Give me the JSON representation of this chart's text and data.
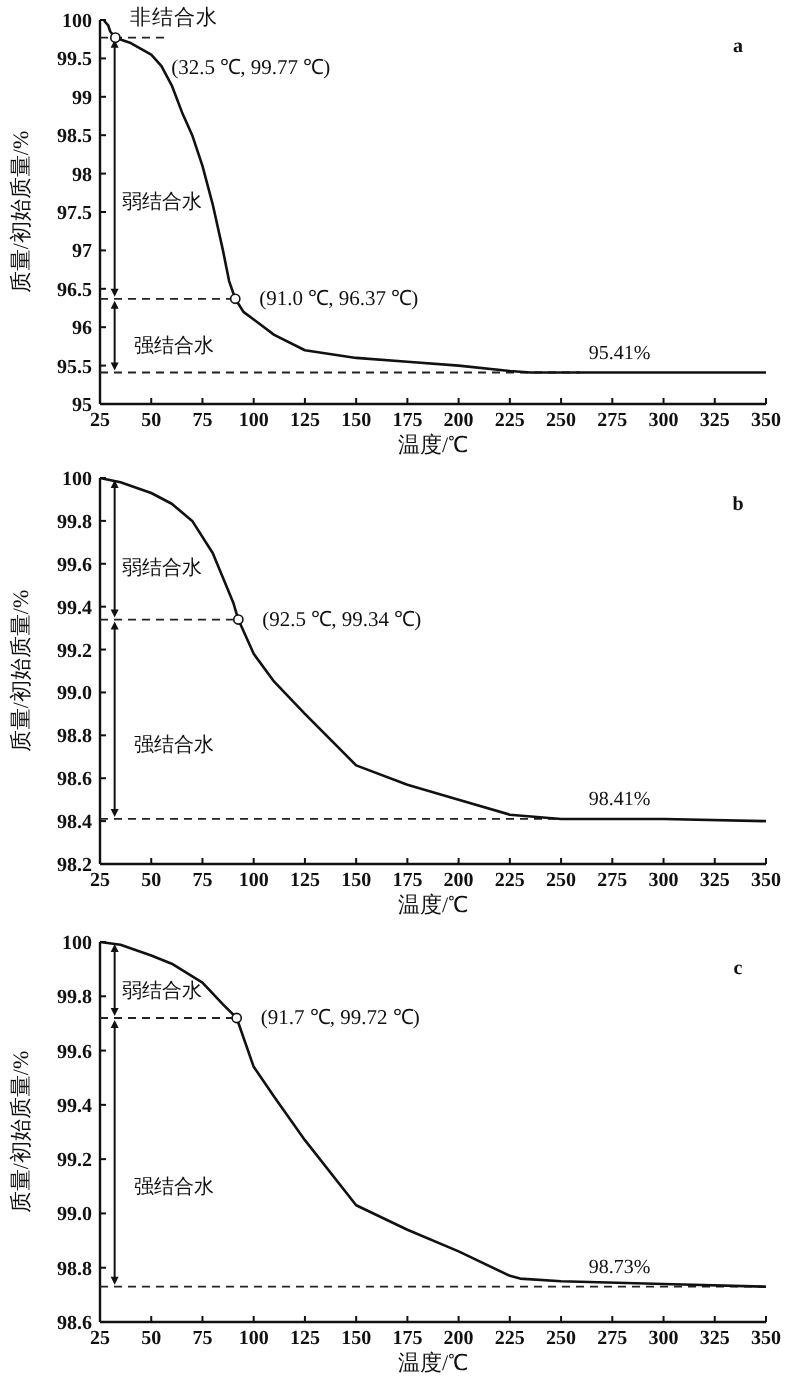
{
  "chart_data": [
    {
      "type": "line",
      "title": "a",
      "xlabel": "温度/℃",
      "ylabel": "质量/初始质量/%",
      "xlim": [
        25,
        350
      ],
      "ylim": [
        95,
        100
      ],
      "xticks": [
        25,
        50,
        75,
        100,
        125,
        150,
        175,
        200,
        225,
        250,
        275,
        300,
        325,
        350
      ],
      "yticks": [
        95,
        95.5,
        96,
        96.5,
        97,
        97.5,
        98,
        98.5,
        99,
        99.5,
        100
      ],
      "grid": false,
      "marker": "none",
      "line_style": "solid",
      "series": [
        {
          "color": "#111111",
          "x": [
            27,
            29,
            30,
            32.5,
            40,
            50,
            55,
            60,
            65,
            70,
            75,
            80,
            85,
            88,
            91,
            95,
            100,
            110,
            125,
            150,
            175,
            200,
            225,
            235,
            350
          ],
          "values": [
            99.99,
            99.93,
            99.85,
            99.77,
            99.7,
            99.55,
            99.4,
            99.15,
            98.8,
            98.5,
            98.1,
            97.6,
            97.0,
            96.6,
            96.37,
            96.2,
            96.1,
            95.9,
            95.7,
            95.6,
            95.55,
            95.5,
            95.43,
            95.41,
            95.41
          ]
        }
      ],
      "ref_lines": [
        {
          "axis": "y",
          "value": 99.77,
          "label": null,
          "line_style": "dashed"
        },
        {
          "axis": "y",
          "value": 96.37,
          "label": null,
          "line_style": "dashed"
        },
        {
          "axis": "y",
          "value": 95.41,
          "label": "95.41%",
          "line_style": "dashed"
        }
      ],
      "annotations": [
        {
          "text": "(32.5 ℃, 99.77 ℃)",
          "x": 32.5,
          "y": 99.77
        },
        {
          "text": "(91.0 ℃, 96.37 ℃)",
          "x": 91.0,
          "y": 96.37
        },
        "非结合水",
        "弱结合水",
        "强结合水"
      ]
    },
    {
      "type": "line",
      "title": "b",
      "xlabel": "温度/℃",
      "ylabel": "质量/初始质量/%",
      "xlim": [
        25,
        350
      ],
      "ylim": [
        98.2,
        100
      ],
      "xticks": [
        25,
        50,
        75,
        100,
        125,
        150,
        175,
        200,
        225,
        250,
        275,
        300,
        325,
        350
      ],
      "yticks": [
        98.2,
        98.4,
        98.6,
        98.8,
        {
          "value": 99,
          "label": "99.0"
        },
        99.2,
        99.4,
        99.6,
        99.8,
        100
      ],
      "grid": false,
      "marker": "none",
      "line_style": "solid",
      "series": [
        {
          "color": "#111111",
          "x": [
            25,
            35,
            50,
            60,
            70,
            80,
            90,
            92.5,
            100,
            110,
            125,
            150,
            175,
            200,
            225,
            250,
            300,
            350
          ],
          "values": [
            100,
            99.98,
            99.93,
            99.88,
            99.8,
            99.65,
            99.42,
            99.34,
            99.18,
            99.05,
            98.9,
            98.66,
            98.57,
            98.5,
            98.43,
            98.41,
            98.41,
            98.4
          ]
        }
      ],
      "ref_lines": [
        {
          "axis": "y",
          "value": 99.34,
          "label": null,
          "line_style": "dashed"
        },
        {
          "axis": "y",
          "value": 98.41,
          "label": "98.41%",
          "line_style": "dashed"
        }
      ],
      "annotations": [
        {
          "text": "(92.5 ℃, 99.34 ℃)",
          "x": 92.5,
          "y": 99.34
        },
        "弱结合水",
        "强结合水"
      ]
    },
    {
      "type": "line",
      "title": "c",
      "xlabel": "温度/℃",
      "ylabel": "质量/初始质量/%",
      "xlim": [
        25,
        350
      ],
      "ylim": [
        98.6,
        100
      ],
      "xticks": [
        25,
        50,
        75,
        100,
        125,
        150,
        175,
        200,
        225,
        250,
        275,
        300,
        325,
        350
      ],
      "yticks": [
        98.6,
        98.8,
        {
          "value": 99,
          "label": "99.0"
        },
        99.2,
        99.4,
        99.6,
        99.8,
        100
      ],
      "grid": false,
      "marker": "none",
      "line_style": "solid",
      "series": [
        {
          "color": "#111111",
          "x": [
            25,
            35,
            50,
            60,
            75,
            85,
            91.7,
            100,
            110,
            125,
            150,
            175,
            200,
            225,
            230,
            250,
            300,
            350
          ],
          "values": [
            100,
            99.99,
            99.95,
            99.92,
            99.85,
            99.77,
            99.72,
            99.54,
            99.43,
            99.27,
            99.03,
            98.94,
            98.86,
            98.77,
            98.76,
            98.75,
            98.74,
            98.73
          ]
        }
      ],
      "ref_lines": [
        {
          "axis": "y",
          "value": 99.72,
          "label": null,
          "line_style": "dashed"
        },
        {
          "axis": "y",
          "value": 98.73,
          "label": "98.73%",
          "line_style": "dashed"
        }
      ],
      "annotations": [
        {
          "text": "(91.7 ℃, 99.72 ℃)",
          "x": 91.7,
          "y": 99.72
        },
        "弱结合水",
        "强结合水"
      ]
    }
  ]
}
